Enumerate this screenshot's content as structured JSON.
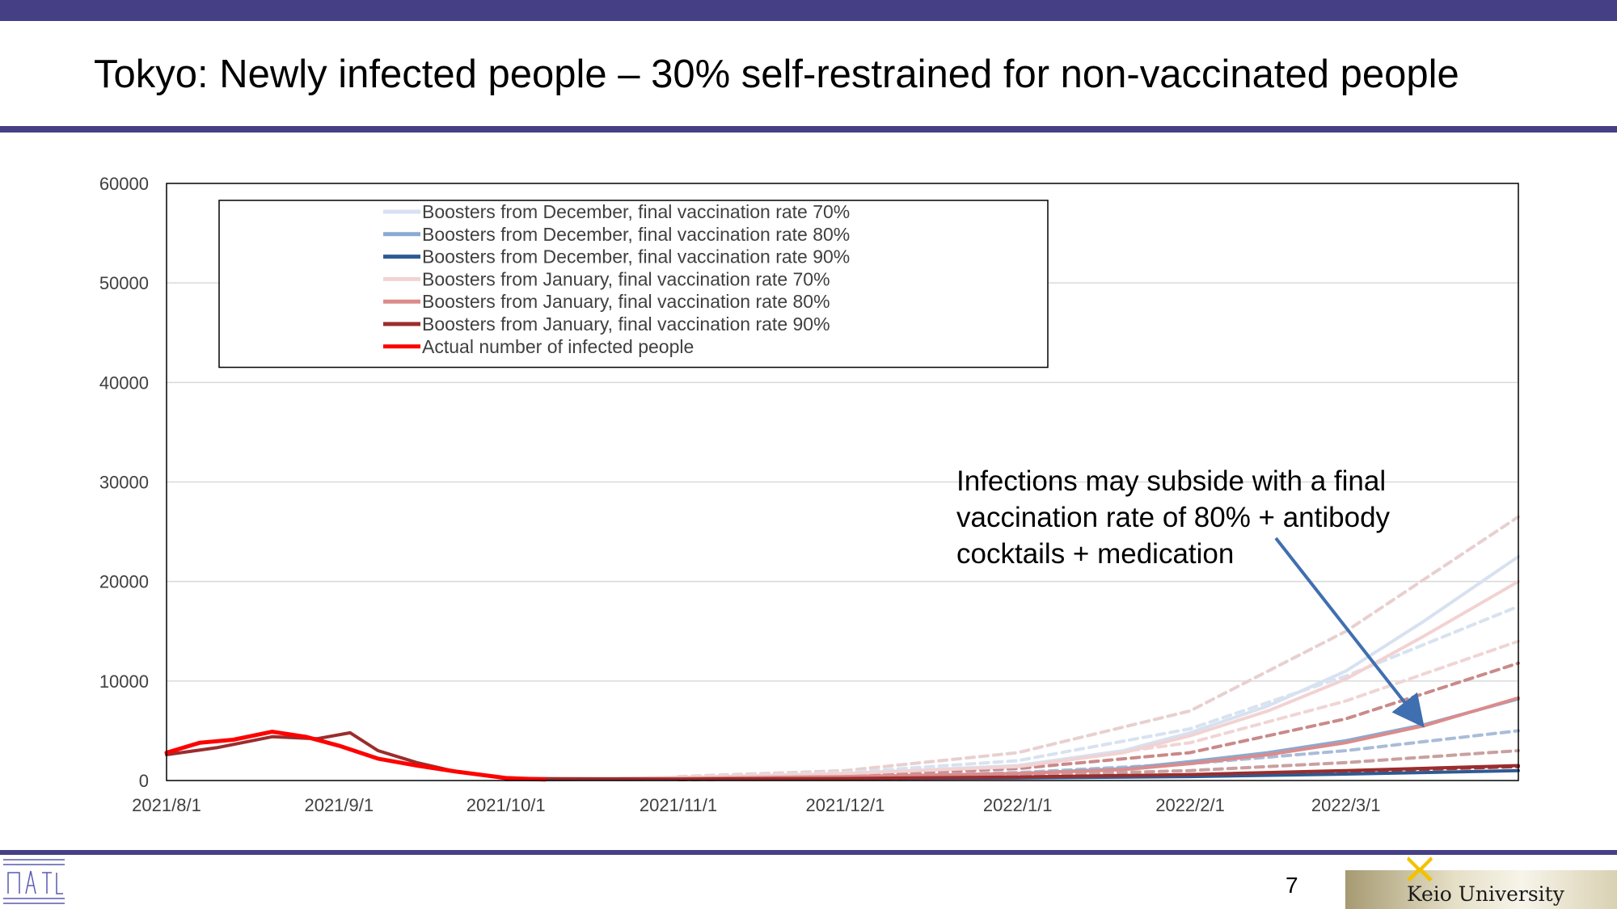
{
  "slide": {
    "title": "Tokyo: Newly infected people – 30% self-restrained for non-vaccinated people",
    "page_number": "7",
    "annotation_lines": [
      "Infections may subside with a final",
      "vaccination rate of 80% + antibody",
      "cocktails + medication"
    ],
    "footer_logo_text": "Keio University",
    "band_color": "#453f86"
  },
  "chart_data": {
    "type": "line",
    "title": "",
    "xlabel": "",
    "ylabel": "",
    "x_range": [
      "2021/8/1",
      "2022/4/1"
    ],
    "ylim": [
      0,
      60000
    ],
    "y_ticks": [
      "0",
      "10000",
      "20000",
      "30000",
      "40000",
      "50000",
      "60000"
    ],
    "x_ticks": [
      "2021/8/1",
      "2021/9/1",
      "2021/10/1",
      "2021/11/1",
      "2021/12/1",
      "2022/1/1",
      "2022/2/1",
      "2022/3/1"
    ],
    "grid": "horizontal",
    "legend_position": "top-left",
    "series": [
      {
        "name": "Boosters from December, final vaccination rate 70%",
        "color": "#d7e1f0",
        "style": "solid",
        "x": [
          "2021/10/1",
          "2021/11/1",
          "2021/12/1",
          "2022/1/1",
          "2022/1/20",
          "2022/2/1",
          "2022/2/15",
          "2022/3/1",
          "2022/3/15",
          "2022/4/1"
        ],
        "y": [
          100,
          300,
          700,
          1500,
          3000,
          4800,
          7500,
          11000,
          16000,
          22500
        ]
      },
      {
        "name": "Boosters from December, final vaccination rate 80%",
        "color": "#8aaad0",
        "style": "solid",
        "x": [
          "2021/10/1",
          "2021/11/1",
          "2021/12/1",
          "2022/1/1",
          "2022/1/20",
          "2022/2/1",
          "2022/2/15",
          "2022/3/1",
          "2022/3/15",
          "2022/4/1"
        ],
        "y": [
          100,
          200,
          400,
          700,
          1200,
          1900,
          2800,
          4000,
          5600,
          8200
        ]
      },
      {
        "name": "Boosters from December, final vaccination rate 90%",
        "color": "#2e5a93",
        "style": "solid",
        "x": [
          "2021/10/1",
          "2021/11/1",
          "2021/12/1",
          "2022/1/1",
          "2022/2/1",
          "2022/3/1",
          "2022/4/1"
        ],
        "y": [
          100,
          150,
          200,
          250,
          400,
          650,
          1000
        ]
      },
      {
        "name": "Boosters from January, final vaccination rate 70%",
        "color": "#f2d2d2",
        "style": "solid",
        "x": [
          "2021/10/1",
          "2021/11/1",
          "2021/12/1",
          "2022/1/1",
          "2022/1/20",
          "2022/2/1",
          "2022/2/15",
          "2022/3/1",
          "2022/3/15",
          "2022/4/1"
        ],
        "y": [
          100,
          300,
          700,
          1400,
          2800,
          4500,
          7000,
          10200,
          14500,
          20000
        ]
      },
      {
        "name": "Boosters from January, final vaccination rate 80%",
        "color": "#dc8b8b",
        "style": "solid",
        "x": [
          "2021/10/1",
          "2021/11/1",
          "2021/12/1",
          "2022/1/1",
          "2022/1/20",
          "2022/2/1",
          "2022/2/15",
          "2022/3/1",
          "2022/3/15",
          "2022/4/1"
        ],
        "y": [
          100,
          200,
          400,
          700,
          1100,
          1700,
          2600,
          3800,
          5500,
          8300
        ]
      },
      {
        "name": "Boosters from January, final vaccination rate 90%",
        "color": "#9b2d2d",
        "style": "solid",
        "x": [
          "2021/8/1",
          "2021/8/10",
          "2021/8/20",
          "2021/8/28",
          "2021/9/3",
          "2021/9/8",
          "2021/9/15",
          "2021/9/22",
          "2021/10/1",
          "2021/11/1",
          "2021/12/1",
          "2022/1/1",
          "2022/2/1",
          "2022/3/1",
          "2022/4/1"
        ],
        "y": [
          2600,
          3300,
          4400,
          4200,
          4800,
          3000,
          1800,
          900,
          200,
          150,
          200,
          350,
          600,
          1000,
          1500
        ]
      },
      {
        "name": "Actual number of infected people",
        "color": "#ff0000",
        "style": "solid",
        "x": [
          "2021/8/1",
          "2021/8/7",
          "2021/8/13",
          "2021/8/20",
          "2021/8/26",
          "2021/9/1",
          "2021/9/8",
          "2021/9/15",
          "2021/9/22",
          "2021/10/1",
          "2021/10/8"
        ],
        "y": [
          2800,
          3800,
          4100,
          4900,
          4400,
          3500,
          2200,
          1500,
          900,
          250,
          100
        ]
      },
      {
        "name": "",
        "color": "#e8d0d0",
        "style": "dashed",
        "x": [
          "2021/11/1",
          "2021/12/1",
          "2022/1/1",
          "2022/2/1",
          "2022/3/1",
          "2022/4/1"
        ],
        "y": [
          400,
          1000,
          2800,
          7000,
          15000,
          26500
        ]
      },
      {
        "name": "",
        "color": "#d8e2f0",
        "style": "dashed",
        "x": [
          "2021/11/1",
          "2021/12/1",
          "2022/1/1",
          "2022/2/1",
          "2022/3/1",
          "2022/4/1"
        ],
        "y": [
          300,
          800,
          2000,
          5200,
          10500,
          17500
        ]
      },
      {
        "name": "",
        "color": "#f0d5d5",
        "style": "dashed",
        "x": [
          "2021/11/1",
          "2021/12/1",
          "2022/1/1",
          "2022/2/1",
          "2022/3/1",
          "2022/4/1"
        ],
        "y": [
          250,
          600,
          1500,
          3800,
          8000,
          14000
        ]
      },
      {
        "name": "",
        "color": "#c98a8a",
        "style": "dashed",
        "x": [
          "2021/11/1",
          "2021/12/1",
          "2022/1/1",
          "2022/2/1",
          "2022/3/1",
          "2022/4/1"
        ],
        "y": [
          200,
          500,
          1200,
          2800,
          6200,
          11800
        ]
      },
      {
        "name": "",
        "color": "#a9bcd8",
        "style": "dashed",
        "x": [
          "2021/11/1",
          "2021/12/1",
          "2022/1/1",
          "2022/2/1",
          "2022/3/1",
          "2022/4/1"
        ],
        "y": [
          150,
          350,
          800,
          1700,
          3000,
          5000
        ]
      },
      {
        "name": "",
        "color": "#c9a0a0",
        "style": "dashed",
        "x": [
          "2021/11/1",
          "2021/12/1",
          "2022/1/1",
          "2022/2/1",
          "2022/3/1",
          "2022/4/1"
        ],
        "y": [
          120,
          250,
          500,
          1000,
          1800,
          3000
        ]
      },
      {
        "name": "",
        "color": "#9b3a3a",
        "style": "dashed",
        "x": [
          "2021/11/1",
          "2021/12/1",
          "2022/1/1",
          "2022/2/1",
          "2022/3/1",
          "2022/4/1"
        ],
        "y": [
          100,
          180,
          300,
          550,
          900,
          1400
        ]
      }
    ]
  }
}
